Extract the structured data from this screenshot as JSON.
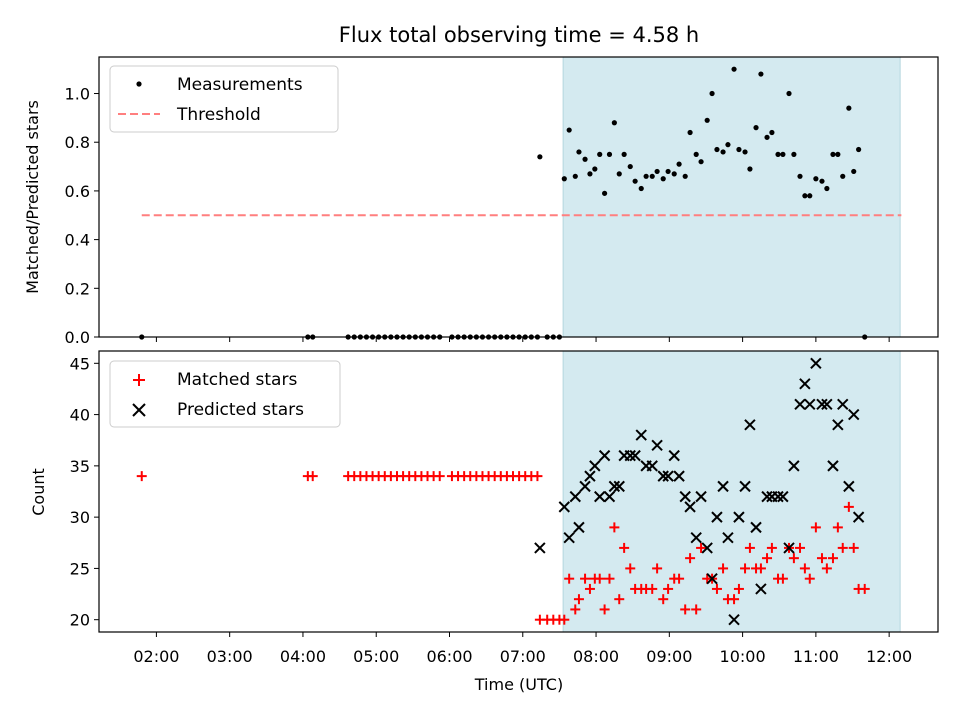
{
  "chart_data": [
    {
      "type": "scatter",
      "title": "Flux total observing time = 4.58 h",
      "xlabel": "",
      "ylabel": "Matched/Predicted stars",
      "ylim": [
        0,
        1.15
      ],
      "yticks": [
        "0.0",
        "0.2",
        "0.4",
        "0.6",
        "0.8",
        "1.0"
      ],
      "highlight_span": [
        "07:33",
        "12:09"
      ],
      "highlight_color": "#d4eaf0",
      "legend": {
        "position": "upper left",
        "items": [
          "Measurements",
          "Threshold"
        ]
      },
      "threshold": {
        "name": "Threshold",
        "value": 0.5,
        "x": [
          "01:48",
          "12:10"
        ],
        "color": "#ff7f7f",
        "style": "dashed"
      },
      "series": [
        {
          "name": "Measurements",
          "color": "#000000",
          "points": [
            [
              "01:48",
              0.0
            ],
            [
              "04:04",
              0.0
            ],
            [
              "04:08",
              0.0
            ],
            [
              "04:37",
              0.0
            ],
            [
              "04:42",
              0.0
            ],
            [
              "04:47",
              0.0
            ],
            [
              "04:52",
              0.0
            ],
            [
              "04:57",
              0.0
            ],
            [
              "05:02",
              0.0
            ],
            [
              "05:07",
              0.0
            ],
            [
              "05:12",
              0.0
            ],
            [
              "05:17",
              0.0
            ],
            [
              "05:22",
              0.0
            ],
            [
              "05:27",
              0.0
            ],
            [
              "05:32",
              0.0
            ],
            [
              "05:37",
              0.0
            ],
            [
              "05:42",
              0.0
            ],
            [
              "05:47",
              0.0
            ],
            [
              "05:52",
              0.0
            ],
            [
              "06:02",
              0.0
            ],
            [
              "06:07",
              0.0
            ],
            [
              "06:12",
              0.0
            ],
            [
              "06:17",
              0.0
            ],
            [
              "06:22",
              0.0
            ],
            [
              "06:27",
              0.0
            ],
            [
              "06:32",
              0.0
            ],
            [
              "06:37",
              0.0
            ],
            [
              "06:42",
              0.0
            ],
            [
              "06:47",
              0.0
            ],
            [
              "06:52",
              0.0
            ],
            [
              "06:57",
              0.0
            ],
            [
              "07:02",
              0.0
            ],
            [
              "07:07",
              0.0
            ],
            [
              "07:12",
              0.0
            ],
            [
              "07:14",
              0.74
            ],
            [
              "07:20",
              0.0
            ],
            [
              "07:25",
              0.0
            ],
            [
              "07:30",
              0.0
            ],
            [
              "07:34",
              0.65
            ],
            [
              "07:38",
              0.85
            ],
            [
              "07:43",
              0.66
            ],
            [
              "07:46",
              0.76
            ],
            [
              "07:51",
              0.73
            ],
            [
              "07:55",
              0.67
            ],
            [
              "07:59",
              0.69
            ],
            [
              "08:03",
              0.75
            ],
            [
              "08:07",
              0.59
            ],
            [
              "08:11",
              0.75
            ],
            [
              "08:15",
              0.88
            ],
            [
              "08:19",
              0.67
            ],
            [
              "08:23",
              0.75
            ],
            [
              "08:28",
              0.7
            ],
            [
              "08:32",
              0.64
            ],
            [
              "08:37",
              0.61
            ],
            [
              "08:41",
              0.66
            ],
            [
              "08:46",
              0.66
            ],
            [
              "08:50",
              0.68
            ],
            [
              "08:55",
              0.65
            ],
            [
              "08:59",
              0.68
            ],
            [
              "09:04",
              0.67
            ],
            [
              "09:08",
              0.71
            ],
            [
              "09:13",
              0.66
            ],
            [
              "09:17",
              0.84
            ],
            [
              "09:22",
              0.75
            ],
            [
              "09:26",
              0.72
            ],
            [
              "09:31",
              0.89
            ],
            [
              "09:35",
              1.0
            ],
            [
              "09:39",
              0.77
            ],
            [
              "09:44",
              0.76
            ],
            [
              "09:48",
              0.79
            ],
            [
              "09:53",
              1.1
            ],
            [
              "09:57",
              0.77
            ],
            [
              "10:02",
              0.76
            ],
            [
              "10:06",
              0.69
            ],
            [
              "10:11",
              0.86
            ],
            [
              "10:15",
              1.08
            ],
            [
              "10:20",
              0.82
            ],
            [
              "10:24",
              0.84
            ],
            [
              "10:29",
              0.75
            ],
            [
              "10:33",
              0.75
            ],
            [
              "10:38",
              1.0
            ],
            [
              "10:42",
              0.75
            ],
            [
              "10:47",
              0.66
            ],
            [
              "10:51",
              0.58
            ],
            [
              "10:55",
              0.58
            ],
            [
              "11:00",
              0.65
            ],
            [
              "11:05",
              0.64
            ],
            [
              "11:09",
              0.61
            ],
            [
              "11:14",
              0.75
            ],
            [
              "11:18",
              0.75
            ],
            [
              "11:22",
              0.66
            ],
            [
              "11:27",
              0.94
            ],
            [
              "11:31",
              0.68
            ],
            [
              "11:35",
              0.77
            ],
            [
              "11:40",
              0.0
            ]
          ]
        }
      ]
    },
    {
      "type": "scatter",
      "title": "",
      "xlabel": "Time (UTC)",
      "ylabel": "Count",
      "ylim": [
        18.8,
        46.2
      ],
      "yticks": [
        "20",
        "25",
        "30",
        "35",
        "40",
        "45"
      ],
      "xlim": [
        "01:13",
        "12:40"
      ],
      "xticks": [
        "02:00",
        "03:00",
        "04:00",
        "05:00",
        "06:00",
        "07:00",
        "08:00",
        "09:00",
        "10:00",
        "11:00",
        "12:00"
      ],
      "highlight_span": [
        "07:33",
        "12:09"
      ],
      "legend": {
        "position": "upper left",
        "items": [
          "Matched stars",
          "Predicted stars"
        ]
      },
      "series": [
        {
          "name": "Matched stars",
          "marker": "+",
          "color": "#ff0000",
          "points": [
            [
              "01:48",
              34
            ],
            [
              "04:04",
              34
            ],
            [
              "04:08",
              34
            ],
            [
              "04:37",
              34
            ],
            [
              "04:42",
              34
            ],
            [
              "04:47",
              34
            ],
            [
              "04:52",
              34
            ],
            [
              "04:57",
              34
            ],
            [
              "05:02",
              34
            ],
            [
              "05:07",
              34
            ],
            [
              "05:12",
              34
            ],
            [
              "05:17",
              34
            ],
            [
              "05:22",
              34
            ],
            [
              "05:27",
              34
            ],
            [
              "05:32",
              34
            ],
            [
              "05:37",
              34
            ],
            [
              "05:42",
              34
            ],
            [
              "05:47",
              34
            ],
            [
              "05:52",
              34
            ],
            [
              "06:02",
              34
            ],
            [
              "06:07",
              34
            ],
            [
              "06:12",
              34
            ],
            [
              "06:17",
              34
            ],
            [
              "06:22",
              34
            ],
            [
              "06:27",
              34
            ],
            [
              "06:32",
              34
            ],
            [
              "06:37",
              34
            ],
            [
              "06:42",
              34
            ],
            [
              "06:47",
              34
            ],
            [
              "06:52",
              34
            ],
            [
              "06:57",
              34
            ],
            [
              "07:02",
              34
            ],
            [
              "07:07",
              34
            ],
            [
              "07:12",
              34
            ],
            [
              "07:14",
              20
            ],
            [
              "07:20",
              20
            ],
            [
              "07:25",
              20
            ],
            [
              "07:30",
              20
            ],
            [
              "07:34",
              20
            ],
            [
              "07:38",
              24
            ],
            [
              "07:43",
              21
            ],
            [
              "07:46",
              22
            ],
            [
              "07:51",
              24
            ],
            [
              "07:55",
              23
            ],
            [
              "07:59",
              24
            ],
            [
              "08:03",
              24
            ],
            [
              "08:07",
              21
            ],
            [
              "08:11",
              24
            ],
            [
              "08:15",
              29
            ],
            [
              "08:19",
              22
            ],
            [
              "08:23",
              27
            ],
            [
              "08:28",
              25
            ],
            [
              "08:32",
              23
            ],
            [
              "08:37",
              23
            ],
            [
              "08:41",
              23
            ],
            [
              "08:46",
              23
            ],
            [
              "08:50",
              25
            ],
            [
              "08:55",
              22
            ],
            [
              "08:59",
              23
            ],
            [
              "09:04",
              24
            ],
            [
              "09:08",
              24
            ],
            [
              "09:13",
              21
            ],
            [
              "09:17",
              26
            ],
            [
              "09:22",
              21
            ],
            [
              "09:26",
              27
            ],
            [
              "09:31",
              24
            ],
            [
              "09:35",
              24
            ],
            [
              "09:39",
              23
            ],
            [
              "09:44",
              25
            ],
            [
              "09:48",
              22
            ],
            [
              "09:53",
              22
            ],
            [
              "09:57",
              23
            ],
            [
              "10:02",
              25
            ],
            [
              "10:06",
              27
            ],
            [
              "10:11",
              25
            ],
            [
              "10:15",
              25
            ],
            [
              "10:20",
              26
            ],
            [
              "10:24",
              27
            ],
            [
              "10:29",
              24
            ],
            [
              "10:33",
              24
            ],
            [
              "10:38",
              27
            ],
            [
              "10:42",
              26
            ],
            [
              "10:47",
              27
            ],
            [
              "10:51",
              25
            ],
            [
              "10:55",
              24
            ],
            [
              "11:00",
              29
            ],
            [
              "11:05",
              26
            ],
            [
              "11:09",
              25
            ],
            [
              "11:14",
              26
            ],
            [
              "11:18",
              29
            ],
            [
              "11:22",
              27
            ],
            [
              "11:27",
              31
            ],
            [
              "11:31",
              27
            ],
            [
              "11:35",
              23
            ],
            [
              "11:40",
              23
            ]
          ]
        },
        {
          "name": "Predicted stars",
          "marker": "x",
          "color": "#000000",
          "points": [
            [
              "07:14",
              27
            ],
            [
              "07:34",
              31
            ],
            [
              "07:38",
              28
            ],
            [
              "07:43",
              32
            ],
            [
              "07:46",
              29
            ],
            [
              "07:51",
              33
            ],
            [
              "07:55",
              34
            ],
            [
              "07:59",
              35
            ],
            [
              "08:03",
              32
            ],
            [
              "08:07",
              36
            ],
            [
              "08:11",
              32
            ],
            [
              "08:15",
              33
            ],
            [
              "08:19",
              33
            ],
            [
              "08:23",
              36
            ],
            [
              "08:28",
              36
            ],
            [
              "08:32",
              36
            ],
            [
              "08:37",
              38
            ],
            [
              "08:41",
              35
            ],
            [
              "08:46",
              35
            ],
            [
              "08:50",
              37
            ],
            [
              "08:55",
              34
            ],
            [
              "08:59",
              34
            ],
            [
              "09:04",
              36
            ],
            [
              "09:08",
              34
            ],
            [
              "09:13",
              32
            ],
            [
              "09:17",
              31
            ],
            [
              "09:22",
              28
            ],
            [
              "09:26",
              32
            ],
            [
              "09:31",
              27
            ],
            [
              "09:35",
              24
            ],
            [
              "09:39",
              30
            ],
            [
              "09:44",
              33
            ],
            [
              "09:48",
              28
            ],
            [
              "09:53",
              20
            ],
            [
              "09:57",
              30
            ],
            [
              "10:02",
              33
            ],
            [
              "10:06",
              39
            ],
            [
              "10:11",
              29
            ],
            [
              "10:15",
              23
            ],
            [
              "10:20",
              32
            ],
            [
              "10:24",
              32
            ],
            [
              "10:29",
              32
            ],
            [
              "10:33",
              32
            ],
            [
              "10:38",
              27
            ],
            [
              "10:42",
              35
            ],
            [
              "10:47",
              41
            ],
            [
              "10:51",
              43
            ],
            [
              "10:55",
              41
            ],
            [
              "11:00",
              45
            ],
            [
              "11:05",
              41
            ],
            [
              "11:09",
              41
            ],
            [
              "11:14",
              35
            ],
            [
              "11:18",
              39
            ],
            [
              "11:22",
              41
            ],
            [
              "11:27",
              33
            ],
            [
              "11:31",
              40
            ],
            [
              "11:35",
              30
            ]
          ]
        }
      ]
    }
  ]
}
